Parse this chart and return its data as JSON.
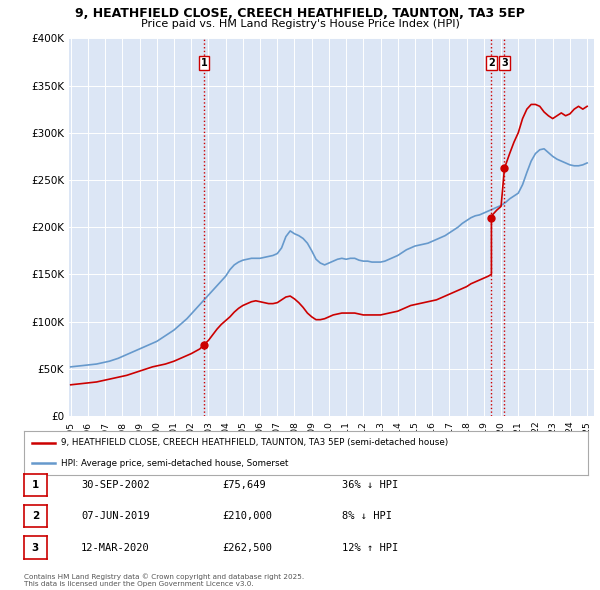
{
  "title_line1": "9, HEATHFIELD CLOSE, CREECH HEATHFIELD, TAUNTON, TA3 5EP",
  "title_line2": "Price paid vs. HM Land Registry's House Price Index (HPI)",
  "plot_bg_color": "#dce6f5",
  "red_color": "#cc0000",
  "blue_color": "#6699cc",
  "hpi_x": [
    1995.0,
    1995.25,
    1995.5,
    1995.75,
    1996.0,
    1996.25,
    1996.5,
    1996.75,
    1997.0,
    1997.25,
    1997.5,
    1997.75,
    1998.0,
    1998.25,
    1998.5,
    1998.75,
    1999.0,
    1999.25,
    1999.5,
    1999.75,
    2000.0,
    2000.25,
    2000.5,
    2000.75,
    2001.0,
    2001.25,
    2001.5,
    2001.75,
    2002.0,
    2002.25,
    2002.5,
    2002.75,
    2003.0,
    2003.25,
    2003.5,
    2003.75,
    2004.0,
    2004.25,
    2004.5,
    2004.75,
    2005.0,
    2005.25,
    2005.5,
    2005.75,
    2006.0,
    2006.25,
    2006.5,
    2006.75,
    2007.0,
    2007.25,
    2007.5,
    2007.75,
    2008.0,
    2008.25,
    2008.5,
    2008.75,
    2009.0,
    2009.25,
    2009.5,
    2009.75,
    2010.0,
    2010.25,
    2010.5,
    2010.75,
    2011.0,
    2011.25,
    2011.5,
    2011.75,
    2012.0,
    2012.25,
    2012.5,
    2012.75,
    2013.0,
    2013.25,
    2013.5,
    2013.75,
    2014.0,
    2014.25,
    2014.5,
    2014.75,
    2015.0,
    2015.25,
    2015.5,
    2015.75,
    2016.0,
    2016.25,
    2016.5,
    2016.75,
    2017.0,
    2017.25,
    2017.5,
    2017.75,
    2018.0,
    2018.25,
    2018.5,
    2018.75,
    2019.0,
    2019.25,
    2019.5,
    2019.75,
    2020.0,
    2020.25,
    2020.5,
    2020.75,
    2021.0,
    2021.25,
    2021.5,
    2021.75,
    2022.0,
    2022.25,
    2022.5,
    2022.75,
    2023.0,
    2023.25,
    2023.5,
    2023.75,
    2024.0,
    2024.25,
    2024.5,
    2024.75,
    2025.0
  ],
  "hpi_y": [
    52000,
    52500,
    53000,
    53500,
    54000,
    54500,
    55000,
    56000,
    57000,
    58000,
    59500,
    61000,
    63000,
    65000,
    67000,
    69000,
    71000,
    73000,
    75000,
    77000,
    79000,
    82000,
    85000,
    88000,
    91000,
    95000,
    99000,
    103000,
    108000,
    113000,
    118000,
    123000,
    128000,
    133000,
    138000,
    143000,
    148000,
    155000,
    160000,
    163000,
    165000,
    166000,
    167000,
    167000,
    167000,
    168000,
    169000,
    170000,
    172000,
    178000,
    190000,
    196000,
    193000,
    191000,
    188000,
    183000,
    175000,
    166000,
    162000,
    160000,
    162000,
    164000,
    166000,
    167000,
    166000,
    167000,
    167000,
    165000,
    164000,
    164000,
    163000,
    163000,
    163000,
    164000,
    166000,
    168000,
    170000,
    173000,
    176000,
    178000,
    180000,
    181000,
    182000,
    183000,
    185000,
    187000,
    189000,
    191000,
    194000,
    197000,
    200000,
    204000,
    207000,
    210000,
    212000,
    213000,
    215000,
    217000,
    219000,
    221000,
    223000,
    226000,
    230000,
    233000,
    236000,
    245000,
    258000,
    270000,
    278000,
    282000,
    283000,
    279000,
    275000,
    272000,
    270000,
    268000,
    266000,
    265000,
    265000,
    266000,
    268000
  ],
  "red_x": [
    1995.0,
    1995.25,
    1995.5,
    1995.75,
    1996.0,
    1996.25,
    1996.5,
    1996.75,
    1997.0,
    1997.25,
    1997.5,
    1997.75,
    1998.0,
    1998.25,
    1998.5,
    1998.75,
    1999.0,
    1999.25,
    1999.5,
    1999.75,
    2000.0,
    2000.25,
    2000.5,
    2000.75,
    2001.0,
    2001.25,
    2001.5,
    2001.75,
    2002.0,
    2002.25,
    2002.5,
    2002.75,
    2003.0,
    2003.25,
    2003.5,
    2003.75,
    2004.0,
    2004.25,
    2004.5,
    2004.75,
    2005.0,
    2005.25,
    2005.5,
    2005.75,
    2006.0,
    2006.25,
    2006.5,
    2006.75,
    2007.0,
    2007.25,
    2007.5,
    2007.75,
    2008.0,
    2008.25,
    2008.5,
    2008.75,
    2009.0,
    2009.25,
    2009.5,
    2009.75,
    2010.0,
    2010.25,
    2010.5,
    2010.75,
    2011.0,
    2011.25,
    2011.5,
    2011.75,
    2012.0,
    2012.25,
    2012.5,
    2012.75,
    2013.0,
    2013.25,
    2013.5,
    2013.75,
    2014.0,
    2014.25,
    2014.5,
    2014.75,
    2015.0,
    2015.25,
    2015.5,
    2015.75,
    2016.0,
    2016.25,
    2016.5,
    2016.75,
    2017.0,
    2017.25,
    2017.5,
    2017.75,
    2018.0,
    2018.25,
    2018.5,
    2018.75,
    2019.0,
    2019.25,
    2019.44,
    2019.44,
    2019.5,
    2019.75,
    2020.0,
    2020.2,
    2020.2,
    2020.5,
    2020.75,
    2021.0,
    2021.25,
    2021.5,
    2021.75,
    2022.0,
    2022.25,
    2022.5,
    2022.75,
    2023.0,
    2023.25,
    2023.5,
    2023.75,
    2024.0,
    2024.25,
    2024.5,
    2024.75,
    2025.0
  ],
  "red_y": [
    33000,
    33500,
    34000,
    34500,
    35000,
    35500,
    36000,
    37000,
    38000,
    39000,
    40000,
    41000,
    42000,
    43000,
    44500,
    46000,
    47500,
    49000,
    50500,
    52000,
    53000,
    54000,
    55000,
    56500,
    58000,
    60000,
    62000,
    64000,
    66000,
    68500,
    71000,
    75649,
    80000,
    86000,
    92000,
    97000,
    101000,
    105000,
    110000,
    114000,
    117000,
    119000,
    121000,
    122000,
    121000,
    120000,
    119000,
    119000,
    120000,
    123000,
    126000,
    127000,
    124000,
    120000,
    115000,
    109000,
    105000,
    102000,
    102000,
    103000,
    105000,
    107000,
    108000,
    109000,
    109000,
    109000,
    109000,
    108000,
    107000,
    107000,
    107000,
    107000,
    107000,
    108000,
    109000,
    110000,
    111000,
    113000,
    115000,
    117000,
    118000,
    119000,
    120000,
    121000,
    122000,
    123000,
    125000,
    127000,
    129000,
    131000,
    133000,
    135000,
    137000,
    140000,
    142000,
    144000,
    146000,
    148000,
    150000,
    210000,
    213000,
    218000,
    222000,
    262500,
    262500,
    278000,
    290000,
    300000,
    315000,
    325000,
    330000,
    330000,
    328000,
    322000,
    318000,
    315000,
    318000,
    321000,
    318000,
    320000,
    325000,
    328000,
    325000,
    328000
  ],
  "ylim": [
    0,
    400000
  ],
  "yticks": [
    0,
    50000,
    100000,
    150000,
    200000,
    250000,
    300000,
    350000,
    400000
  ],
  "xlim_start": 1994.9,
  "xlim_end": 2025.4,
  "sale1_x": 2002.75,
  "sale1_y": 75649,
  "sale2_x": 2019.44,
  "sale2_y": 210000,
  "sale3_x": 2020.2,
  "sale3_y": 262500,
  "legend_label_red": "9, HEATHFIELD CLOSE, CREECH HEATHFIELD, TAUNTON, TA3 5EP (semi-detached house)",
  "legend_label_blue": "HPI: Average price, semi-detached house, Somerset",
  "table_rows": [
    {
      "num": "1",
      "date": "30-SEP-2002",
      "price": "£75,649",
      "change": "36% ↓ HPI"
    },
    {
      "num": "2",
      "date": "07-JUN-2019",
      "price": "£210,000",
      "change": "8% ↓ HPI"
    },
    {
      "num": "3",
      "date": "12-MAR-2020",
      "price": "£262,500",
      "change": "12% ↑ HPI"
    }
  ],
  "footnote": "Contains HM Land Registry data © Crown copyright and database right 2025.\nThis data is licensed under the Open Government Licence v3.0."
}
